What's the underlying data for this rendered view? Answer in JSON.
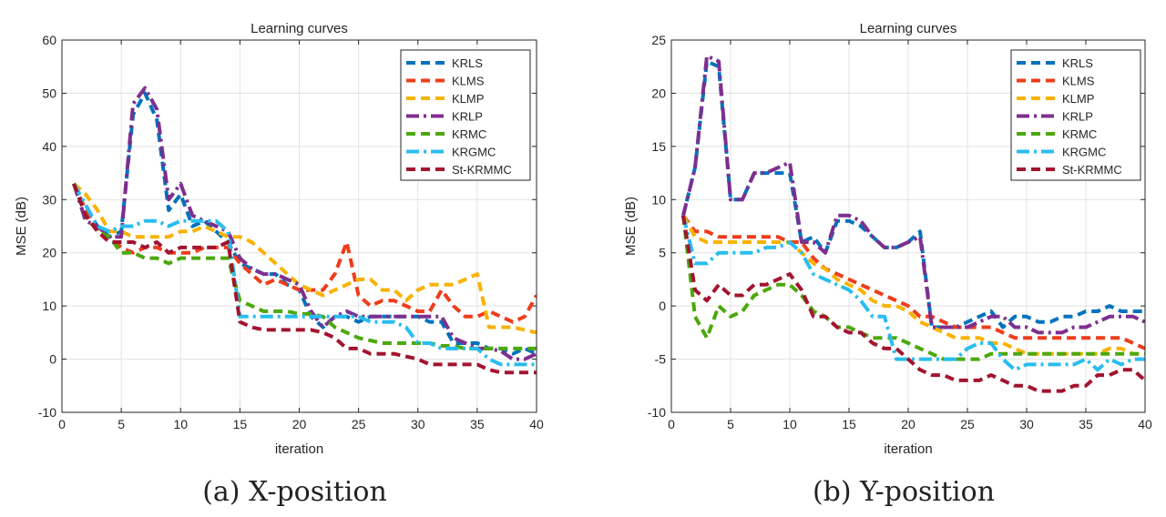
{
  "chart_data": [
    {
      "type": "line",
      "title": "Learning curves",
      "xlabel": "iteration",
      "ylabel": "MSE (dB)",
      "caption": "(a) X-position",
      "xlim": [
        0,
        40
      ],
      "ylim": [
        -10,
        60
      ],
      "xticks": [
        0,
        5,
        10,
        15,
        20,
        25,
        30,
        35,
        40
      ],
      "yticks": [
        -10,
        0,
        10,
        20,
        30,
        40,
        50,
        60
      ],
      "grid": true,
      "legend_position": "top-right",
      "x": [
        1,
        2,
        3,
        4,
        5,
        6,
        7,
        8,
        9,
        10,
        11,
        12,
        13,
        14,
        15,
        16,
        17,
        18,
        19,
        20,
        21,
        22,
        23,
        24,
        25,
        26,
        27,
        28,
        29,
        30,
        31,
        32,
        33,
        34,
        35,
        36,
        37,
        38,
        39,
        40
      ],
      "series": [
        {
          "name": "KRLS",
          "color": "#0072BD",
          "dash": "dash",
          "values": [
            33,
            28,
            25,
            23,
            24,
            46,
            50,
            45,
            28,
            31,
            25,
            26,
            24,
            22,
            18,
            17,
            16,
            16,
            14,
            13,
            8,
            6,
            8,
            8,
            7,
            8,
            8,
            8,
            8,
            8,
            7,
            7,
            3,
            3,
            3,
            2,
            2,
            1,
            2,
            1
          ]
        },
        {
          "name": "KLMS",
          "color": "#EE3D1A",
          "dash": "dash",
          "values": [
            33,
            28,
            24,
            23,
            21,
            20,
            21,
            21,
            20,
            20,
            20,
            21,
            21,
            21,
            18,
            16,
            14,
            15,
            14,
            13,
            13,
            13,
            16,
            22,
            12,
            10,
            11,
            11,
            10,
            9,
            9,
            13,
            10,
            8,
            8,
            9,
            8,
            7,
            8,
            12
          ]
        },
        {
          "name": "KLMP",
          "color": "#F8B200",
          "dash": "dash",
          "values": [
            33,
            31,
            28,
            24,
            24,
            23,
            23,
            23,
            23,
            24,
            24,
            25,
            24,
            23,
            23,
            22,
            20,
            18,
            16,
            14,
            13,
            12,
            13,
            14,
            15,
            15,
            13,
            13,
            11,
            13,
            14,
            14,
            14,
            15,
            16,
            6,
            6,
            6,
            5.5,
            5
          ]
        },
        {
          "name": "KRLP",
          "color": "#7E2F8E",
          "dash": "dashdot",
          "values": [
            33,
            26,
            25,
            23,
            23,
            48,
            51,
            47,
            30,
            33,
            27,
            26,
            25,
            24,
            19,
            17,
            16,
            16,
            15,
            14,
            9,
            6,
            8,
            9,
            8,
            8,
            8,
            8,
            8,
            8,
            8,
            8,
            4,
            3,
            2,
            2,
            1.5,
            0,
            0,
            1
          ]
        },
        {
          "name": "KRMC",
          "color": "#4CA80C",
          "dash": "dash",
          "values": [
            33,
            27,
            24,
            23,
            20,
            20,
            19,
            19,
            18,
            19,
            19,
            19,
            19,
            19,
            11,
            10,
            9,
            9,
            9,
            8.5,
            8.5,
            8,
            6,
            5,
            4,
            3.5,
            3,
            3,
            3,
            3,
            3,
            2.5,
            2.5,
            2,
            2,
            2,
            2,
            2,
            2,
            2
          ]
        },
        {
          "name": "KRGMC",
          "color": "#29BDEF",
          "dash": "dashdot",
          "values": [
            33,
            29,
            25,
            24,
            25,
            25,
            26,
            26,
            25,
            26,
            26,
            26,
            26,
            24,
            8,
            8,
            8,
            8,
            8,
            8,
            8,
            8,
            8,
            8,
            8,
            7,
            7,
            7,
            6,
            3,
            3,
            2,
            2,
            2,
            2,
            0,
            -1,
            -1,
            -1,
            -1
          ]
        },
        {
          "name": "St-KRMMC",
          "color": "#A2142F",
          "dash": "dash",
          "values": [
            33,
            27,
            24,
            22,
            22,
            22,
            21,
            22,
            20,
            21,
            21,
            21,
            21,
            22,
            7,
            6,
            5.5,
            5.5,
            5.5,
            5.5,
            5.5,
            5,
            4,
            2,
            2,
            1,
            1,
            1,
            0.5,
            0,
            -1,
            -1,
            -1,
            -1,
            -1,
            -2,
            -2.5,
            -2.5,
            -2.5,
            -2.5
          ]
        }
      ]
    },
    {
      "type": "line",
      "title": "Learning curves",
      "xlabel": "iteration",
      "ylabel": "MSE (dB)",
      "caption": "(b) Y-position",
      "xlim": [
        0,
        40
      ],
      "ylim": [
        -10,
        25
      ],
      "xticks": [
        0,
        5,
        10,
        15,
        20,
        25,
        30,
        35,
        40
      ],
      "yticks": [
        -10,
        -5,
        0,
        5,
        10,
        15,
        20,
        25
      ],
      "grid": true,
      "legend_position": "top-right",
      "x": [
        1,
        2,
        3,
        4,
        5,
        6,
        7,
        8,
        9,
        10,
        11,
        12,
        13,
        14,
        15,
        16,
        17,
        18,
        19,
        20,
        21,
        22,
        23,
        24,
        25,
        26,
        27,
        28,
        29,
        30,
        31,
        32,
        33,
        34,
        35,
        36,
        37,
        38,
        39,
        40
      ],
      "series": [
        {
          "name": "KRLS",
          "color": "#0072BD",
          "dash": "dash",
          "values": [
            8.5,
            13,
            23,
            22.5,
            10,
            10,
            12.5,
            12.5,
            12.5,
            12.5,
            6,
            6.5,
            5,
            8,
            8,
            7.5,
            6.5,
            5.5,
            5.5,
            6,
            7,
            -2,
            -2,
            -2,
            -1.5,
            -1,
            -0.5,
            -2,
            -1,
            -1,
            -1.5,
            -1.5,
            -1,
            -1,
            -0.5,
            -0.5,
            0,
            -0.5,
            -0.5,
            -0.5
          ]
        },
        {
          "name": "KLMS",
          "color": "#EE3D1A",
          "dash": "dash",
          "values": [
            8.5,
            7,
            7,
            6.5,
            6.5,
            6.5,
            6.5,
            6.5,
            6.5,
            6,
            6,
            4.5,
            3.5,
            3,
            2.5,
            2,
            1.5,
            1,
            0.5,
            0,
            -1,
            -1,
            -1.5,
            -2,
            -2,
            -2,
            -2,
            -2.5,
            -3,
            -3,
            -3,
            -3,
            -3,
            -3,
            -3,
            -3,
            -3,
            -3,
            -3.5,
            -4
          ]
        },
        {
          "name": "KLMP",
          "color": "#F8B200",
          "dash": "dash",
          "values": [
            8.5,
            6.5,
            6,
            6,
            6,
            6,
            6,
            6,
            6,
            6,
            5,
            4,
            3.5,
            2.5,
            2,
            1.5,
            0.5,
            0,
            0,
            -0.5,
            -1.5,
            -2,
            -2.5,
            -3,
            -3,
            -3,
            -3.5,
            -3.5,
            -4,
            -4.5,
            -4.5,
            -4.5,
            -4.5,
            -4.5,
            -4.5,
            -4.5,
            -4,
            -4,
            -4.5,
            -4.5
          ]
        },
        {
          "name": "KRLP",
          "color": "#7E2F8E",
          "dash": "dashdot",
          "values": [
            8.5,
            13,
            23.5,
            23,
            10,
            10,
            12.5,
            12.5,
            13,
            13.5,
            6,
            6,
            5,
            8.5,
            8.5,
            8,
            6.5,
            5.5,
            5.5,
            6,
            6.5,
            -2,
            -2,
            -2,
            -2,
            -1.5,
            -1,
            -1,
            -2,
            -2,
            -2.5,
            -2.5,
            -2.5,
            -2,
            -2,
            -1.5,
            -1,
            -1,
            -1,
            -1.5
          ]
        },
        {
          "name": "KRMC",
          "color": "#4CA80C",
          "dash": "dash",
          "values": [
            8.5,
            -1,
            -3,
            0,
            -1,
            -0.5,
            1,
            1.5,
            2,
            2,
            1,
            -0.5,
            -1,
            -2,
            -2,
            -2.5,
            -3,
            -3,
            -3,
            -3.5,
            -4,
            -4.5,
            -5,
            -5,
            -5,
            -5,
            -4.5,
            -4.5,
            -4.5,
            -4.5,
            -4.5,
            -4.5,
            -4.5,
            -4.5,
            -4.5,
            -4.5,
            -4.5,
            -4.5,
            -4.5,
            -4.5
          ]
        },
        {
          "name": "KRGMC",
          "color": "#29BDEF",
          "dash": "dashdot",
          "values": [
            8.5,
            4,
            4,
            5,
            5,
            5,
            5,
            5.5,
            5.5,
            6,
            5,
            3,
            2.5,
            2,
            1.5,
            0.5,
            -1,
            -1,
            -5,
            -5,
            -5,
            -5,
            -5,
            -5,
            -4,
            -3.5,
            -3.5,
            -5,
            -6,
            -5.5,
            -5.5,
            -5.5,
            -5.5,
            -5.5,
            -5,
            -6,
            -5,
            -5.5,
            -5,
            -5
          ]
        },
        {
          "name": "St-KRMMC",
          "color": "#A2142F",
          "dash": "dash",
          "values": [
            8.5,
            1.5,
            0.5,
            2,
            1,
            1,
            2,
            2,
            2.5,
            3,
            1.5,
            -1,
            -1,
            -2,
            -2.5,
            -2.5,
            -3.5,
            -4,
            -4,
            -5,
            -6,
            -6.5,
            -6.5,
            -7,
            -7,
            -7,
            -6.5,
            -7,
            -7.5,
            -7.5,
            -8,
            -8,
            -8,
            -7.5,
            -7.5,
            -6.5,
            -6.5,
            -6,
            -6,
            -7
          ]
        }
      ]
    }
  ]
}
